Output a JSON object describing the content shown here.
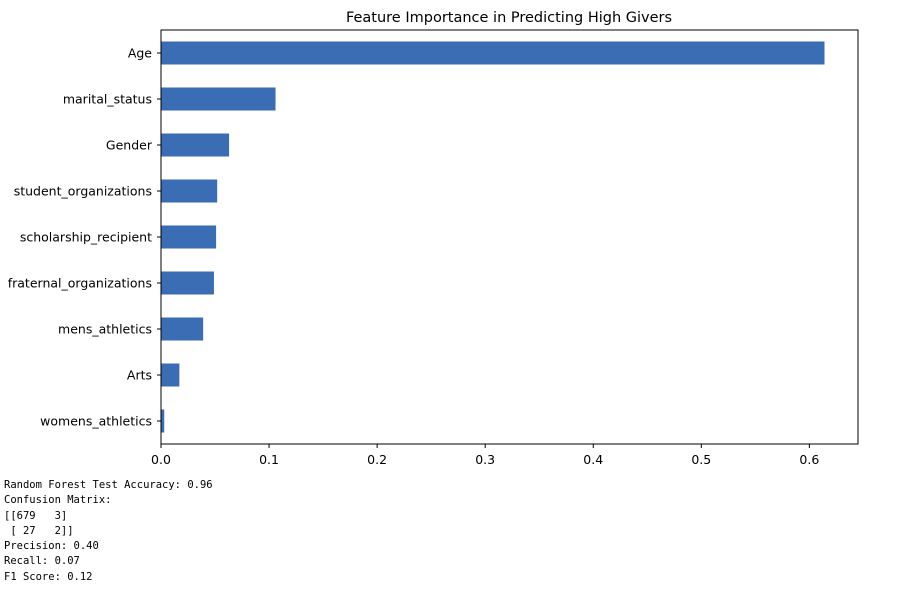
{
  "chart_data": {
    "type": "bar",
    "orientation": "horizontal",
    "title": "Feature Importance in Predicting High Givers",
    "xlabel": "",
    "ylabel": "",
    "categories": [
      "Age",
      "marital_status",
      "Gender",
      "student_organizations",
      "scholarship_recipient",
      "fraternal_organizations",
      "mens_athletics",
      "Arts",
      "womens_athletics"
    ],
    "values": [
      0.614,
      0.106,
      0.063,
      0.052,
      0.051,
      0.049,
      0.039,
      0.017,
      0.003
    ],
    "xlim": [
      0,
      0.645
    ],
    "xticks": [
      "0.0",
      "0.1",
      "0.2",
      "0.3",
      "0.4",
      "0.5",
      "0.6"
    ],
    "grid": false,
    "bar_color": "#3a6db4"
  },
  "output": {
    "lines": [
      "Random Forest Test Accuracy: 0.96",
      "Confusion Matrix:",
      "[[679   3]",
      " [ 27   2]]",
      "Precision: 0.40",
      "Recall: 0.07",
      "F1 Score: 0.12"
    ]
  }
}
